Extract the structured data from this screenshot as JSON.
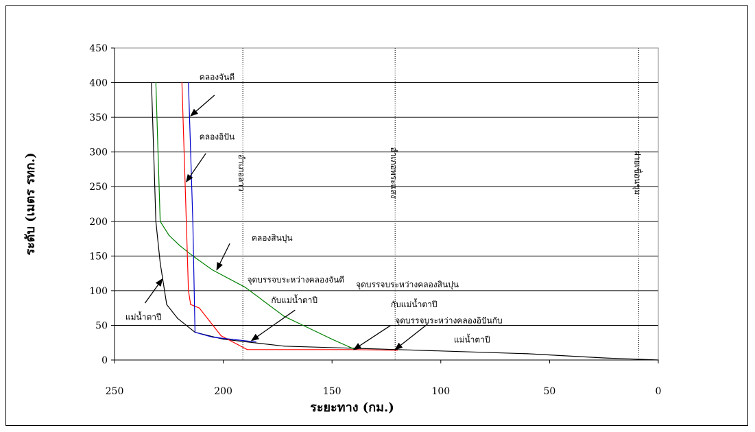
{
  "chart_data": {
    "type": "line",
    "xlabel": "ระยะทาง (กม.)",
    "ylabel": "ระดับ (เมตร รทก.)",
    "xlim": [
      250,
      0
    ],
    "ylim": [
      0,
      450
    ],
    "x_ticks": [
      "250",
      "200",
      "150",
      "100",
      "50",
      "0"
    ],
    "y_ticks": [
      "0",
      "50",
      "100",
      "150",
      "200",
      "250",
      "300",
      "350",
      "400",
      "450"
    ],
    "grid": "horizontal",
    "series": [
      {
        "color": "#000000",
        "x": [
          233,
          232,
          231,
          229,
          226,
          221,
          213,
          200,
          172,
          120,
          60,
          25,
          0
        ],
        "y": [
          400,
          300,
          200,
          140,
          80,
          60,
          40,
          30,
          20,
          15,
          9,
          3,
          0
        ]
      },
      {
        "color": "#008000",
        "x": [
          231,
          229,
          225,
          220,
          214,
          205,
          190,
          172,
          160,
          150,
          140
        ],
        "y": [
          400,
          200,
          180,
          165,
          150,
          130,
          105,
          63,
          45,
          30,
          16
        ]
      },
      {
        "color": "#ff0000",
        "x": [
          219,
          217,
          216,
          215,
          211,
          201,
          189,
          140,
          120
        ],
        "y": [
          400,
          200,
          100,
          80,
          75,
          35,
          15,
          15,
          14
        ]
      },
      {
        "color": "#0000cc",
        "x": [
          216,
          214,
          213,
          205,
          185
        ],
        "y": [
          400,
          200,
          40,
          33,
          26
        ]
      }
    ],
    "reference_lines": [
      {
        "x": 191,
        "label": "อำเภอลาว"
      },
      {
        "x": 121,
        "label": "อำเภอพระแสง"
      },
      {
        "x": 9,
        "label": "ฝายเขื่อนชุม"
      }
    ],
    "annotations": [
      {
        "text": "คลองจันดี",
        "x": 211,
        "y": 404,
        "arrow_from": [
          204,
          382
        ],
        "arrow_to": [
          215,
          352
        ]
      },
      {
        "text": "คลองอิปัน",
        "x": 211,
        "y": 318,
        "arrow_from": [
          208,
          298
        ],
        "arrow_to": [
          217,
          257
        ]
      },
      {
        "text": "คลองสินปุน",
        "x": 187,
        "y": 172,
        "arrow_from": [
          197,
          168
        ],
        "arrow_to": [
          203,
          130
        ]
      },
      {
        "text": "แม่น้ำตาปี",
        "x": 245,
        "y": 58,
        "arrow_from": [
          236,
          82
        ],
        "arrow_to": [
          228,
          117
        ]
      },
      {
        "text": "จุดบรรจบระหว่างคลองจันดี",
        "x": 189,
        "y": 112,
        "arrow_from": [
          167,
          72
        ],
        "arrow_to": [
          187,
          28
        ]
      },
      {
        "text": "กับแม่น้ำตาปี",
        "x": 178,
        "y": 82
      },
      {
        "text": "จุดบรรจบระหว่างคลองสินปุน",
        "x": 139,
        "y": 105,
        "arrow_from": [
          123,
          50
        ],
        "arrow_to": [
          140,
          15
        ]
      },
      {
        "text": "กับแม่น้ำตาปี",
        "x": 123,
        "y": 76
      },
      {
        "text": "จุดบรรจบระหว่างคลองอิปันกับ",
        "x": 121,
        "y": 53,
        "arrow_from": [
          106,
          52
        ],
        "arrow_to": [
          121,
          15
        ]
      },
      {
        "text": "แม่น้ำตาปี",
        "x": 94,
        "y": 25
      }
    ]
  }
}
